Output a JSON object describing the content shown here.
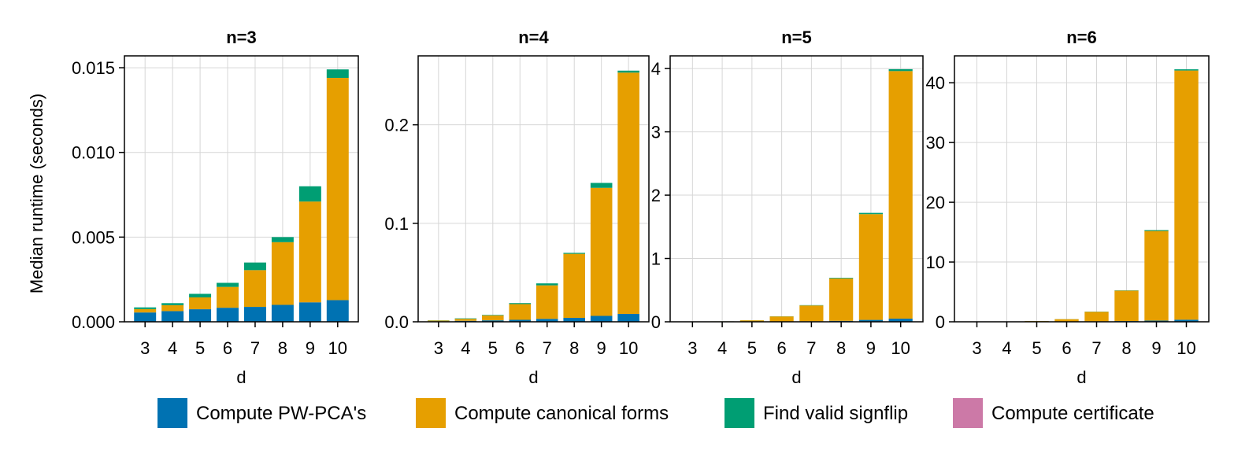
{
  "chart_data": {
    "type": "bar",
    "stacked": true,
    "ylabel": "Median runtime (seconds)",
    "xlabel": "d",
    "categories": [
      "3",
      "4",
      "5",
      "6",
      "7",
      "8",
      "9",
      "10"
    ],
    "legend": [
      {
        "name": "Compute PW-PCA's",
        "color": "#0072b2"
      },
      {
        "name": "Compute canonical forms",
        "color": "#e69f00"
      },
      {
        "name": "Find valid signflip",
        "color": "#009e73"
      },
      {
        "name": "Compute certificate",
        "color": "#cc79a7"
      }
    ],
    "legend_position": "bottom",
    "grid": true,
    "panels": [
      {
        "title": "n=3",
        "ylim": [
          0,
          0.0157
        ],
        "yticks": [
          0,
          0.005,
          0.01,
          0.015
        ],
        "yticklabels": [
          "0.000",
          "0.005",
          "0.010",
          "0.015"
        ],
        "series": [
          {
            "name": "Compute PW-PCA's",
            "values": [
              0.00055,
              0.00063,
              0.00074,
              0.00083,
              0.00088,
              0.001,
              0.00115,
              0.00128
            ]
          },
          {
            "name": "Compute canonical forms",
            "values": [
              0.0002,
              0.00035,
              0.0007,
              0.00123,
              0.00217,
              0.0037,
              0.00595,
              0.01312
            ]
          },
          {
            "name": "Find valid signflip",
            "values": [
              0.0001,
              0.00012,
              0.00021,
              0.00024,
              0.00045,
              0.0003,
              0.0009,
              0.0005
            ]
          },
          {
            "name": "Compute certificate",
            "values": [
              0,
              0,
              0,
              0,
              0,
              0,
              0,
              0
            ]
          }
        ]
      },
      {
        "title": "n=4",
        "ylim": [
          0,
          0.27
        ],
        "yticks": [
          0,
          0.1,
          0.2
        ],
        "yticklabels": [
          "0.0",
          "0.1",
          "0.2"
        ],
        "series": [
          {
            "name": "Compute PW-PCA's",
            "values": [
              0.0005,
              0.001,
              0.0015,
              0.002,
              0.003,
              0.004,
              0.006,
              0.008
            ]
          },
          {
            "name": "Compute canonical forms",
            "values": [
              0.0008,
              0.002,
              0.005,
              0.016,
              0.034,
              0.065,
              0.13,
              0.245
            ]
          },
          {
            "name": "Find valid signflip",
            "values": [
              0.0002,
              0.0005,
              0.0005,
              0.001,
              0.002,
              0.001,
              0.005,
              0.002
            ]
          },
          {
            "name": "Compute certificate",
            "values": [
              0,
              0,
              0,
              0,
              0,
              0,
              0,
              0
            ]
          }
        ]
      },
      {
        "title": "n=5",
        "ylim": [
          0,
          4.2
        ],
        "yticks": [
          0,
          1,
          2,
          3,
          4
        ],
        "yticklabels": [
          "0",
          "1",
          "2",
          "3",
          "4"
        ],
        "series": [
          {
            "name": "Compute PW-PCA's",
            "values": [
              0.001,
              0.002,
              0.003,
              0.005,
              0.008,
              0.015,
              0.03,
              0.05
            ]
          },
          {
            "name": "Compute canonical forms",
            "values": [
              0.002,
              0.005,
              0.02,
              0.08,
              0.25,
              0.67,
              1.67,
              3.91
            ]
          },
          {
            "name": "Find valid signflip",
            "values": [
              0.0003,
              0.0005,
              0.001,
              0.002,
              0.005,
              0.01,
              0.02,
              0.03
            ]
          },
          {
            "name": "Compute certificate",
            "values": [
              0,
              0,
              0,
              0,
              0,
              0,
              0,
              0
            ]
          }
        ]
      },
      {
        "title": "n=6",
        "ylim": [
          0,
          44.5
        ],
        "yticks": [
          0,
          10,
          20,
          30,
          40
        ],
        "yticklabels": [
          "0",
          "10",
          "20",
          "30",
          "40"
        ],
        "series": [
          {
            "name": "Compute PW-PCA's",
            "values": [
              0.005,
              0.01,
              0.02,
              0.04,
              0.08,
              0.12,
              0.2,
              0.35
            ]
          },
          {
            "name": "Compute canonical forms",
            "values": [
              0.01,
              0.03,
              0.1,
              0.4,
              1.6,
              5.1,
              15.0,
              41.7
            ]
          },
          {
            "name": "Find valid signflip",
            "values": [
              0.001,
              0.002,
              0.005,
              0.01,
              0.03,
              0.05,
              0.15,
              0.2
            ]
          },
          {
            "name": "Compute certificate",
            "values": [
              0,
              0,
              0,
              0,
              0,
              0,
              0,
              0
            ]
          }
        ]
      }
    ]
  }
}
